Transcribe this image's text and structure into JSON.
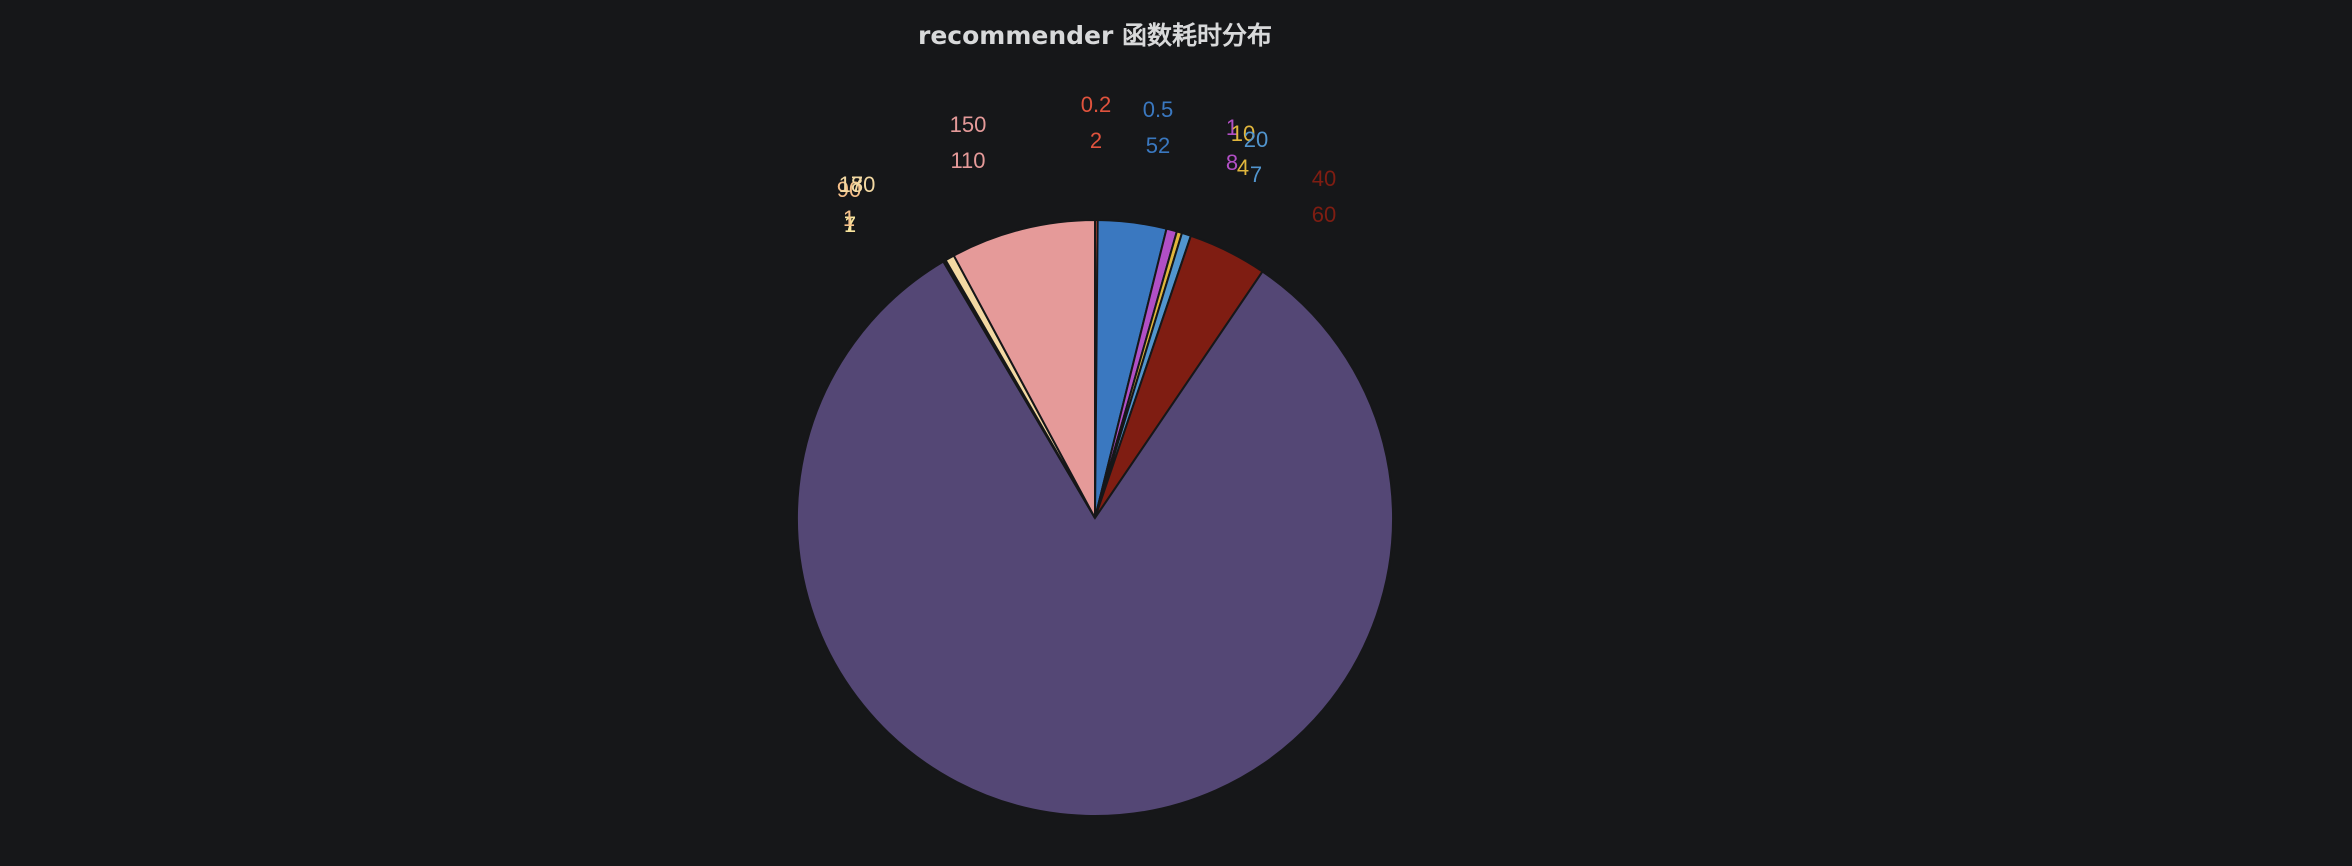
{
  "chart_data": {
    "type": "pie",
    "title": "recommender 函数耗时分布",
    "slices": [
      {
        "label": "0.2",
        "value": 2,
        "color": "#e0533d"
      },
      {
        "label": "0.5",
        "value": 52,
        "color": "#3a78c0"
      },
      {
        "label": "1",
        "value": 8,
        "color": "#b14fc5"
      },
      {
        "label": "10",
        "value": 4,
        "color": "#e0b63d"
      },
      {
        "label": "20",
        "value": 7,
        "color": "#5195ce"
      },
      {
        "label": "40",
        "value": 60,
        "color": "#7f1d12"
      },
      {
        "label": "",
        "value": 1148,
        "color": "#544775"
      },
      {
        "label": "7",
        "value": 1,
        "color": "#f8e49d"
      },
      {
        "label": "90",
        "value": 1,
        "color": "#f6c08a"
      },
      {
        "label": "180",
        "value": 7,
        "color": "#f3d9a3"
      },
      {
        "label": "150",
        "value": 110,
        "color": "#e59a99"
      }
    ]
  }
}
